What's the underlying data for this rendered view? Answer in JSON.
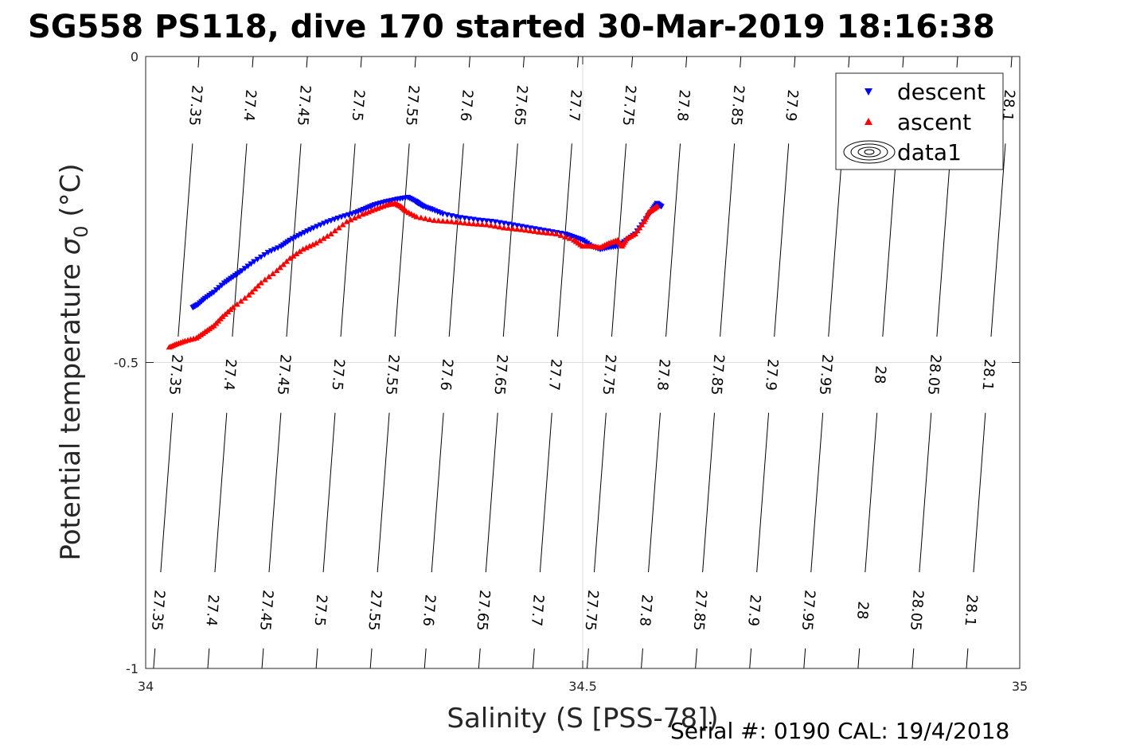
{
  "chart_data": {
    "type": "scatter",
    "title": "SG558 PS118, dive 170 started 30-Mar-2019 18:16:38",
    "xlabel": "Salinity (S [PSS-78])",
    "ylabel_main": "Potential temperature ",
    "ylabel_sigma": "σ",
    "ylabel_sub": "0",
    "ylabel_unit": " (°C)",
    "xlim": [
      34,
      35
    ],
    "ylim": [
      -1,
      0
    ],
    "x_ticks": [
      "34",
      "34.5",
      "35"
    ],
    "y_ticks": [
      "0",
      "-0.5",
      "-1"
    ],
    "grid": true,
    "legend_position": "top-right",
    "legend": [
      {
        "label": "descent",
        "color": "#0000ff",
        "marker": "triangle-down"
      },
      {
        "label": "ascent",
        "color": "#ff0000",
        "marker": "triangle-up"
      },
      {
        "label": "data1",
        "color": "#000000",
        "marker": "contour"
      }
    ],
    "contours": {
      "levels": [
        "27.35",
        "27.4",
        "27.45",
        "27.5",
        "27.55",
        "27.6",
        "27.65",
        "27.7",
        "27.75",
        "27.8",
        "27.85",
        "27.9",
        "27.95",
        "28",
        "28.05",
        "28.1"
      ],
      "x_at_y0": [
        34.061,
        34.123,
        34.185,
        34.247,
        34.309,
        34.371,
        34.433,
        34.495,
        34.557,
        34.619,
        34.681,
        34.743,
        34.805,
        34.867,
        34.929,
        34.991
      ],
      "slope_x_per_degC": 0.052
    },
    "series": [
      {
        "name": "descent",
        "color": "#0000ff",
        "x": [
          34.054,
          34.06,
          34.068,
          34.078,
          34.09,
          34.1,
          34.11,
          34.124,
          34.14,
          34.155,
          34.165,
          34.178,
          34.192,
          34.208,
          34.224,
          34.24,
          34.252,
          34.262,
          34.275,
          34.288,
          34.3,
          34.308,
          34.312,
          34.318,
          34.328,
          34.34,
          34.36,
          34.38,
          34.4,
          34.42,
          34.44,
          34.46,
          34.48,
          34.49,
          34.5,
          34.51,
          34.52,
          34.53,
          34.54,
          34.55,
          34.56,
          34.57,
          34.58,
          34.585,
          34.59
        ],
        "y": [
          -0.41,
          -0.405,
          -0.395,
          -0.385,
          -0.37,
          -0.36,
          -0.35,
          -0.335,
          -0.32,
          -0.31,
          -0.3,
          -0.29,
          -0.28,
          -0.27,
          -0.262,
          -0.255,
          -0.248,
          -0.242,
          -0.237,
          -0.233,
          -0.23,
          -0.236,
          -0.24,
          -0.245,
          -0.25,
          -0.257,
          -0.263,
          -0.267,
          -0.27,
          -0.275,
          -0.28,
          -0.285,
          -0.29,
          -0.295,
          -0.3,
          -0.31,
          -0.315,
          -0.312,
          -0.31,
          -0.3,
          -0.29,
          -0.27,
          -0.25,
          -0.24,
          -0.245
        ]
      },
      {
        "name": "ascent",
        "color": "#ff0000",
        "x": [
          34.027,
          34.035,
          34.045,
          34.058,
          34.068,
          34.078,
          34.088,
          34.1,
          34.118,
          34.132,
          34.15,
          34.165,
          34.18,
          34.195,
          34.212,
          34.23,
          34.248,
          34.262,
          34.275,
          34.285,
          34.292,
          34.298,
          34.31,
          34.33,
          34.35,
          34.37,
          34.39,
          34.41,
          34.43,
          34.45,
          34.47,
          34.49,
          34.5,
          34.51,
          34.52,
          34.53,
          34.54,
          34.545,
          34.55,
          34.56,
          34.57,
          34.575,
          34.58,
          34.585
        ],
        "y": [
          -0.475,
          -0.47,
          -0.465,
          -0.46,
          -0.45,
          -0.44,
          -0.425,
          -0.41,
          -0.39,
          -0.37,
          -0.35,
          -0.33,
          -0.315,
          -0.305,
          -0.29,
          -0.27,
          -0.258,
          -0.25,
          -0.243,
          -0.24,
          -0.245,
          -0.253,
          -0.262,
          -0.268,
          -0.27,
          -0.273,
          -0.275,
          -0.28,
          -0.283,
          -0.287,
          -0.29,
          -0.3,
          -0.31,
          -0.31,
          -0.312,
          -0.305,
          -0.3,
          -0.31,
          -0.298,
          -0.29,
          -0.27,
          -0.255,
          -0.25,
          -0.245
        ]
      }
    ],
    "footer": "Serial #: 0190  CAL: 19/4/2018"
  }
}
